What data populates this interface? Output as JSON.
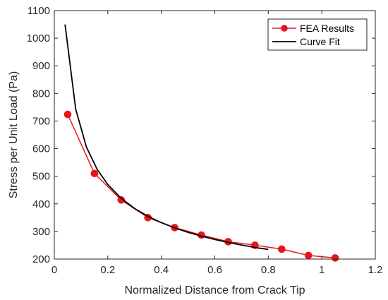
{
  "chart_data": {
    "type": "line",
    "xlabel": "Normalized Distance from Crack Tip",
    "ylabel": "Stress per Unit Load (Pa)",
    "xlim": [
      0,
      1.2
    ],
    "ylim": [
      200,
      1100
    ],
    "xticks": [
      0,
      0.2,
      0.4,
      0.6,
      0.8,
      1,
      1.2
    ],
    "xtick_labels": [
      "0",
      "0.2",
      "0.4",
      "0.6",
      "0.8",
      "1",
      "1.2"
    ],
    "yticks": [
      200,
      300,
      400,
      500,
      600,
      700,
      800,
      900,
      1000,
      1100
    ],
    "ytick_labels": [
      "200",
      "300",
      "400",
      "500",
      "600",
      "700",
      "800",
      "900",
      "1000",
      "1100"
    ],
    "grid": false,
    "legend_position": "top-right",
    "series": [
      {
        "name": "FEA Results",
        "color": "#e8161b",
        "marker": "circle",
        "x": [
          0.05,
          0.15,
          0.25,
          0.35,
          0.45,
          0.55,
          0.65,
          0.75,
          0.85,
          0.95,
          1.05
        ],
        "y": [
          724,
          510,
          414,
          350,
          314,
          287,
          263,
          250,
          236,
          213,
          204
        ]
      },
      {
        "name": "Curve Fit",
        "color": "#000000",
        "marker": "none",
        "x": [
          0.04,
          0.08,
          0.12,
          0.16,
          0.2,
          0.25,
          0.3,
          0.35,
          0.4,
          0.45,
          0.5,
          0.55,
          0.6,
          0.65,
          0.7,
          0.75,
          0.8
        ],
        "y": [
          1050,
          743,
          606,
          525,
          470,
          420,
          383,
          355,
          332,
          313,
          297,
          283,
          271,
          260,
          251,
          242,
          235
        ]
      }
    ]
  }
}
